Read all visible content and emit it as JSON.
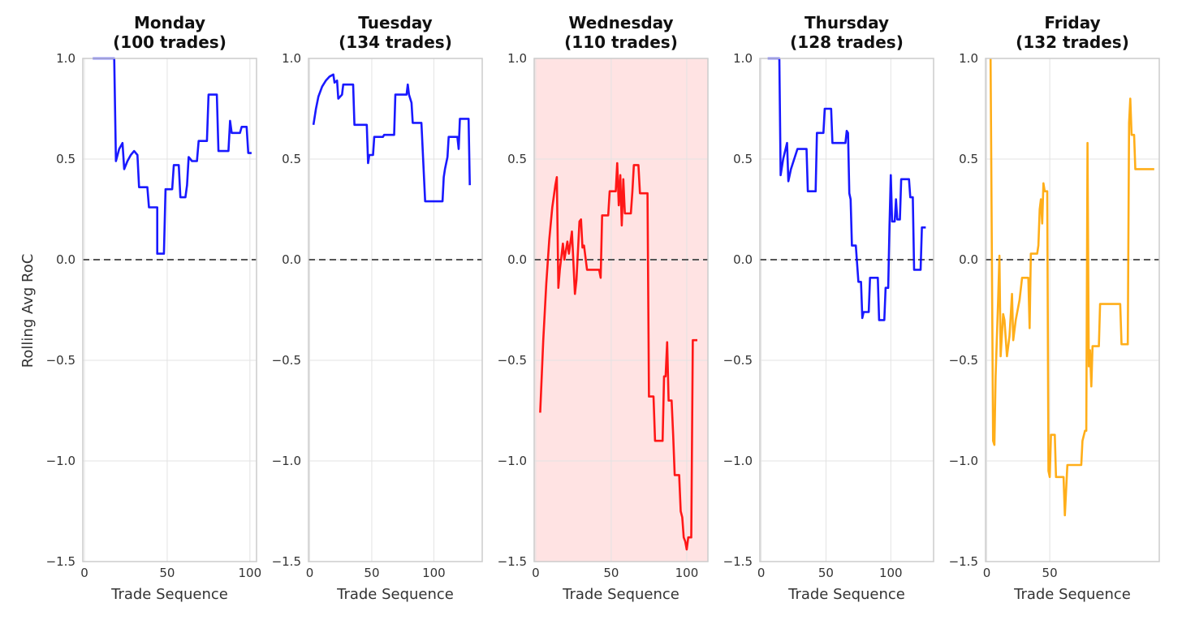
{
  "chart_data": {
    "type": "line",
    "ylabel": "Rolling Avg RoC",
    "ylim": [
      -1.5,
      1.0
    ],
    "yticks": [
      1.0,
      0.5,
      0.0,
      -0.5,
      -1.0,
      -1.5
    ],
    "ytick_labels": [
      "1.0",
      "0.5",
      "0.0",
      "−0.5",
      "−1.0",
      "−1.5"
    ],
    "grid": true,
    "reference_line": {
      "y": 0,
      "style": "dashed",
      "color": "#555555"
    },
    "panels": [
      {
        "title_line1": "Monday",
        "title_line2": "(100 trades)",
        "xlabel": "Trade Sequence",
        "xlim": [
          -1,
          104
        ],
        "xticks": [
          0,
          50,
          100
        ],
        "xtick_labels": [
          "0",
          "50",
          "100"
        ],
        "color": "#0000ff",
        "highlight": false,
        "points": [
          [
            5,
            1.0
          ],
          [
            18,
            1.0
          ],
          [
            19,
            0.49
          ],
          [
            21,
            0.55
          ],
          [
            23,
            0.58
          ],
          [
            24,
            0.45
          ],
          [
            26,
            0.49
          ],
          [
            28,
            0.52
          ],
          [
            30,
            0.54
          ],
          [
            32,
            0.52
          ],
          [
            33,
            0.36
          ],
          [
            38,
            0.36
          ],
          [
            39,
            0.26
          ],
          [
            44,
            0.26
          ],
          [
            44,
            0.03
          ],
          [
            48,
            0.03
          ],
          [
            49,
            0.35
          ],
          [
            53,
            0.35
          ],
          [
            54,
            0.47
          ],
          [
            57,
            0.47
          ],
          [
            58,
            0.31
          ],
          [
            61,
            0.31
          ],
          [
            62,
            0.37
          ],
          [
            63,
            0.51
          ],
          [
            65,
            0.49
          ],
          [
            68,
            0.49
          ],
          [
            69,
            0.59
          ],
          [
            74,
            0.59
          ],
          [
            75,
            0.82
          ],
          [
            80,
            0.82
          ],
          [
            81,
            0.54
          ],
          [
            87,
            0.54
          ],
          [
            88,
            0.69
          ],
          [
            89,
            0.63
          ],
          [
            94,
            0.63
          ],
          [
            95,
            0.66
          ],
          [
            98,
            0.66
          ],
          [
            99,
            0.53
          ],
          [
            101,
            0.53
          ]
        ]
      },
      {
        "title_line1": "Tuesday",
        "title_line2": "(134 trades)",
        "xlabel": "Trade Sequence",
        "xlim": [
          -1,
          139
        ],
        "xticks": [
          0,
          50,
          100
        ],
        "xtick_labels": [
          "0",
          "50",
          "100"
        ],
        "color": "#0000ff",
        "highlight": false,
        "points": [
          [
            3,
            0.67
          ],
          [
            5,
            0.75
          ],
          [
            7,
            0.81
          ],
          [
            10,
            0.86
          ],
          [
            13,
            0.89
          ],
          [
            16,
            0.91
          ],
          [
            19,
            0.92
          ],
          [
            20,
            0.88
          ],
          [
            22,
            0.89
          ],
          [
            23,
            0.8
          ],
          [
            26,
            0.82
          ],
          [
            27,
            0.87
          ],
          [
            35,
            0.87
          ],
          [
            36,
            0.67
          ],
          [
            46,
            0.67
          ],
          [
            47,
            0.48
          ],
          [
            48,
            0.52
          ],
          [
            51,
            0.52
          ],
          [
            52,
            0.61
          ],
          [
            59,
            0.61
          ],
          [
            60,
            0.62
          ],
          [
            68,
            0.62
          ],
          [
            69,
            0.82
          ],
          [
            78,
            0.82
          ],
          [
            79,
            0.87
          ],
          [
            80,
            0.82
          ],
          [
            82,
            0.78
          ],
          [
            83,
            0.68
          ],
          [
            90,
            0.68
          ],
          [
            93,
            0.29
          ],
          [
            107,
            0.29
          ],
          [
            108,
            0.41
          ],
          [
            109,
            0.45
          ],
          [
            111,
            0.51
          ],
          [
            112,
            0.61
          ],
          [
            119,
            0.61
          ],
          [
            120,
            0.55
          ],
          [
            121,
            0.7
          ],
          [
            128,
            0.7
          ],
          [
            129,
            0.37
          ]
        ]
      },
      {
        "title_line1": "Wednesday",
        "title_line2": "(110 trades)",
        "xlabel": "Trade Sequence",
        "xlim": [
          -1,
          114
        ],
        "xticks": [
          0,
          50,
          100
        ],
        "xtick_labels": [
          "0",
          "50",
          "100"
        ],
        "color": "#ff0000",
        "highlight": true,
        "highlight_color": "#ffe3e3",
        "points": [
          [
            3,
            -0.76
          ],
          [
            5,
            -0.4
          ],
          [
            7,
            -0.12
          ],
          [
            9,
            0.1
          ],
          [
            11,
            0.26
          ],
          [
            13,
            0.37
          ],
          [
            14,
            0.41
          ],
          [
            15,
            -0.14
          ],
          [
            16,
            -0.05
          ],
          [
            18,
            0.08
          ],
          [
            19,
            0.0
          ],
          [
            21,
            0.09
          ],
          [
            22,
            0.03
          ],
          [
            24,
            0.14
          ],
          [
            26,
            -0.17
          ],
          [
            27,
            -0.1
          ],
          [
            29,
            0.19
          ],
          [
            30,
            0.2
          ],
          [
            31,
            0.06
          ],
          [
            32,
            0.07
          ],
          [
            34,
            -0.05
          ],
          [
            42,
            -0.05
          ],
          [
            43,
            -0.09
          ],
          [
            44,
            0.22
          ],
          [
            48,
            0.22
          ],
          [
            49,
            0.34
          ],
          [
            53,
            0.34
          ],
          [
            54,
            0.48
          ],
          [
            55,
            0.27
          ],
          [
            56,
            0.42
          ],
          [
            57,
            0.17
          ],
          [
            58,
            0.4
          ],
          [
            59,
            0.23
          ],
          [
            63,
            0.23
          ],
          [
            64,
            0.34
          ],
          [
            65,
            0.47
          ],
          [
            68,
            0.47
          ],
          [
            69,
            0.33
          ],
          [
            74,
            0.33
          ],
          [
            75,
            -0.68
          ],
          [
            78,
            -0.68
          ],
          [
            79,
            -0.9
          ],
          [
            84,
            -0.9
          ],
          [
            85,
            -0.58
          ],
          [
            86,
            -0.58
          ],
          [
            87,
            -0.41
          ],
          [
            88,
            -0.7
          ],
          [
            90,
            -0.7
          ],
          [
            91,
            -0.87
          ],
          [
            92,
            -1.07
          ],
          [
            95,
            -1.07
          ],
          [
            96,
            -1.25
          ],
          [
            97,
            -1.28
          ],
          [
            98,
            -1.38
          ],
          [
            99,
            -1.4
          ],
          [
            100,
            -1.44
          ],
          [
            101,
            -1.38
          ],
          [
            103,
            -1.38
          ],
          [
            104,
            -0.4
          ],
          [
            107,
            -0.4
          ]
        ]
      },
      {
        "title_line1": "Thursday",
        "title_line2": "(128 trades)",
        "xlabel": "Trade Sequence",
        "xlim": [
          -1,
          133
        ],
        "xticks": [
          0,
          50,
          100
        ],
        "xtick_labels": [
          "0",
          "50",
          "100"
        ],
        "color": "#0000ff",
        "highlight": false,
        "points": [
          [
            5,
            1.0
          ],
          [
            14,
            1.0
          ],
          [
            15,
            0.42
          ],
          [
            17,
            0.5
          ],
          [
            20,
            0.58
          ],
          [
            21,
            0.39
          ],
          [
            23,
            0.45
          ],
          [
            26,
            0.51
          ],
          [
            28,
            0.55
          ],
          [
            35,
            0.55
          ],
          [
            36,
            0.34
          ],
          [
            42,
            0.34
          ],
          [
            43,
            0.63
          ],
          [
            48,
            0.63
          ],
          [
            49,
            0.75
          ],
          [
            54,
            0.75
          ],
          [
            55,
            0.58
          ],
          [
            65,
            0.58
          ],
          [
            66,
            0.64
          ],
          [
            67,
            0.63
          ],
          [
            68,
            0.33
          ],
          [
            69,
            0.3
          ],
          [
            70,
            0.07
          ],
          [
            73,
            0.07
          ],
          [
            75,
            -0.11
          ],
          [
            77,
            -0.11
          ],
          [
            78,
            -0.29
          ],
          [
            79,
            -0.26
          ],
          [
            83,
            -0.26
          ],
          [
            84,
            -0.09
          ],
          [
            90,
            -0.09
          ],
          [
            91,
            -0.3
          ],
          [
            95,
            -0.3
          ],
          [
            96,
            -0.14
          ],
          [
            98,
            -0.14
          ],
          [
            99,
            0.17
          ],
          [
            100,
            0.42
          ],
          [
            101,
            0.19
          ],
          [
            103,
            0.19
          ],
          [
            104,
            0.3
          ],
          [
            105,
            0.2
          ],
          [
            107,
            0.2
          ],
          [
            108,
            0.4
          ],
          [
            114,
            0.4
          ],
          [
            115,
            0.31
          ],
          [
            117,
            0.31
          ],
          [
            118,
            -0.05
          ],
          [
            123,
            -0.05
          ],
          [
            124,
            0.16
          ],
          [
            127,
            0.16
          ]
        ]
      },
      {
        "title_line1": "Friday",
        "title_line2": "(132 trades)",
        "xlabel": "Trade Sequence",
        "xlim": [
          -1,
          137
        ],
        "xticks": [
          0,
          50
        ],
        "xtick_labels": [
          "0",
          "50"
        ],
        "color": "#ffa500",
        "highlight": false,
        "points": [
          [
            3,
            1.0
          ],
          [
            5,
            -0.9
          ],
          [
            6,
            -0.92
          ],
          [
            7,
            -0.58
          ],
          [
            9,
            -0.2
          ],
          [
            10,
            0.02
          ],
          [
            11,
            -0.48
          ],
          [
            13,
            -0.27
          ],
          [
            14,
            -0.3
          ],
          [
            16,
            -0.48
          ],
          [
            18,
            -0.38
          ],
          [
            20,
            -0.17
          ],
          [
            21,
            -0.4
          ],
          [
            23,
            -0.3
          ],
          [
            26,
            -0.2
          ],
          [
            28,
            -0.09
          ],
          [
            33,
            -0.09
          ],
          [
            34,
            -0.34
          ],
          [
            35,
            0.03
          ],
          [
            40,
            0.03
          ],
          [
            41,
            0.07
          ],
          [
            42,
            0.25
          ],
          [
            43,
            0.3
          ],
          [
            44,
            0.18
          ],
          [
            45,
            0.38
          ],
          [
            46,
            0.34
          ],
          [
            48,
            0.34
          ],
          [
            49,
            -1.05
          ],
          [
            50,
            -1.08
          ],
          [
            51,
            -0.87
          ],
          [
            54,
            -0.87
          ],
          [
            55,
            -1.08
          ],
          [
            61,
            -1.08
          ],
          [
            62,
            -1.27
          ],
          [
            64,
            -1.02
          ],
          [
            75,
            -1.02
          ],
          [
            76,
            -0.9
          ],
          [
            78,
            -0.85
          ],
          [
            79,
            -0.85
          ],
          [
            80,
            0.58
          ],
          [
            81,
            -0.53
          ],
          [
            82,
            -0.45
          ],
          [
            83,
            -0.63
          ],
          [
            84,
            -0.43
          ],
          [
            89,
            -0.43
          ],
          [
            90,
            -0.22
          ],
          [
            106,
            -0.22
          ],
          [
            107,
            -0.42
          ],
          [
            112,
            -0.42
          ],
          [
            113,
            0.68
          ],
          [
            114,
            0.8
          ],
          [
            115,
            0.62
          ],
          [
            117,
            0.62
          ],
          [
            118,
            0.45
          ],
          [
            121,
            0.45
          ],
          [
            122,
            0.45
          ],
          [
            133,
            0.45
          ]
        ]
      }
    ]
  }
}
